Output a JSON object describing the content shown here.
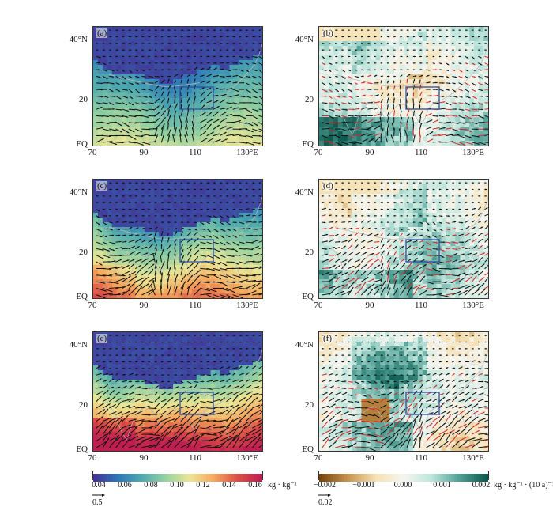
{
  "panels": {
    "a": {
      "label": "(a)"
    },
    "b": {
      "label": "(b)"
    },
    "c": {
      "label": "(c)"
    },
    "d": {
      "label": "(d)"
    },
    "e": {
      "label": "(e)"
    },
    "f": {
      "label": "(f)"
    }
  },
  "axes": {
    "yticks": [
      "40°N",
      "20",
      "EQ"
    ],
    "xticks": [
      "70",
      "90",
      "110",
      "130°E"
    ]
  },
  "colorbar_left": {
    "ticks": [
      "0.04",
      "0.06",
      "0.08",
      "0.10",
      "0.12",
      "0.14",
      "0.16"
    ],
    "unit": "kg · kg⁻¹",
    "ref_vector": "0.5"
  },
  "colorbar_right": {
    "ticks": [
      "−0.002",
      "−0.001",
      "0.000",
      "0.001",
      "0.002"
    ],
    "unit": "kg · kg⁻¹ · (10 a)⁻¹",
    "ref_vector": "0.02"
  },
  "colors": {
    "box": "#2b4fa3",
    "trend_arrow": "#d8282a",
    "arrow": "#111111"
  }
}
